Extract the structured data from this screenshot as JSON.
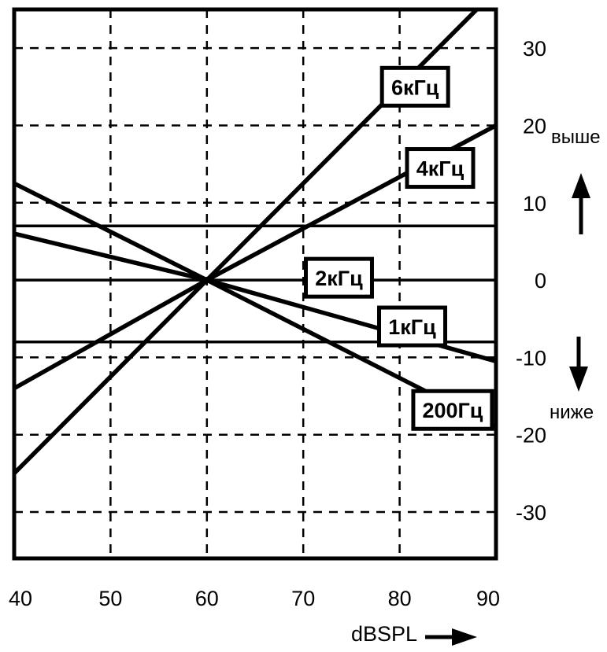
{
  "chart_data": {
    "type": "line",
    "xlabel": "dBSPL",
    "x_ticks": [
      "40",
      "50",
      "60",
      "70",
      "80",
      "90"
    ],
    "y_ticks": [
      "30",
      "20",
      "10",
      "0",
      "-10",
      "-20",
      "-30"
    ],
    "xlim": [
      40,
      90
    ],
    "ylim": [
      -36,
      35
    ],
    "grid": true,
    "side_labels": {
      "up": "выше",
      "down": "ниже"
    },
    "series": [
      {
        "name": "6кГц",
        "points": [
          [
            40,
            -25
          ],
          [
            60,
            0
          ],
          [
            88,
            35
          ]
        ]
      },
      {
        "name": "4кГц",
        "points": [
          [
            40,
            -14
          ],
          [
            60,
            0
          ],
          [
            90,
            20
          ]
        ]
      },
      {
        "name": "2кГц",
        "points": [
          [
            40,
            7
          ],
          [
            90,
            7
          ]
        ]
      },
      {
        "name": "2кГц",
        "points": [
          [
            40,
            0
          ],
          [
            90,
            0
          ]
        ]
      },
      {
        "name": "2кГц",
        "points": [
          [
            40,
            -8
          ],
          [
            90,
            -8
          ]
        ]
      },
      {
        "name": "1кГц",
        "points": [
          [
            40,
            6
          ],
          [
            60,
            0
          ],
          [
            90,
            -10.5
          ]
        ]
      },
      {
        "name": "200Гц",
        "points": [
          [
            40,
            12.5
          ],
          [
            60,
            0
          ],
          [
            90,
            -19
          ]
        ]
      }
    ],
    "annotations": [
      {
        "text": "6кГц",
        "x": 81.6,
        "y": 25
      },
      {
        "text": "4кГц",
        "x": 84.2,
        "y": 14.5
      },
      {
        "text": "2кГц",
        "x": 73.7,
        "y": 0.3
      },
      {
        "text": "1кГц",
        "x": 81.3,
        "y": -6
      },
      {
        "text": "200Гц",
        "x": 85.5,
        "y": -16.8
      }
    ]
  }
}
